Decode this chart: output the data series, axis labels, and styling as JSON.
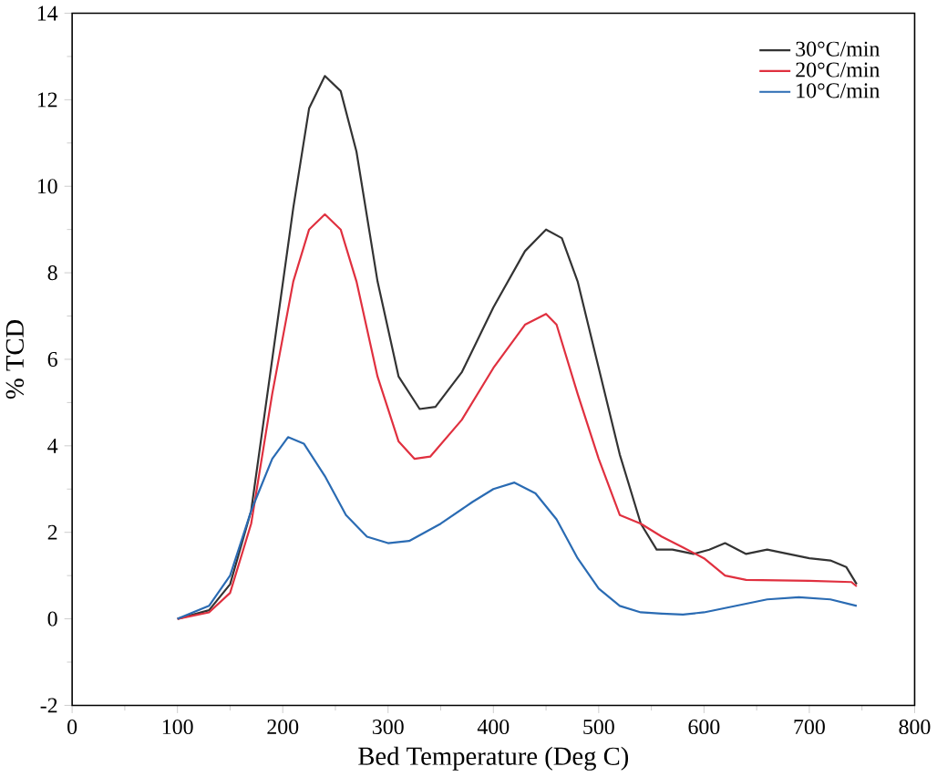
{
  "chart_data": {
    "type": "line",
    "xlabel": "Bed Temperature (Deg C)",
    "ylabel": "% TCD",
    "xlim": [
      0,
      800
    ],
    "xticks": [
      0,
      100,
      200,
      300,
      400,
      500,
      600,
      700,
      800
    ],
    "ylim": [
      -2,
      14
    ],
    "yticks": [
      -2,
      0,
      2,
      4,
      6,
      8,
      10,
      12,
      14
    ],
    "grid": false,
    "legend": "top right",
    "marker": "none",
    "line_style": "solid",
    "series": [
      {
        "name": "30°C/min",
        "color": "#333333",
        "x": [
          100,
          130,
          150,
          170,
          190,
          210,
          225,
          240,
          255,
          270,
          290,
          310,
          330,
          345,
          370,
          400,
          430,
          450,
          465,
          480,
          500,
          520,
          540,
          555,
          570,
          590,
          605,
          620,
          640,
          660,
          680,
          700,
          720,
          735,
          745
        ],
        "values": [
          0,
          0.2,
          0.8,
          2.5,
          6,
          9.5,
          11.8,
          12.55,
          12.2,
          10.8,
          7.8,
          5.6,
          4.85,
          4.9,
          5.7,
          7.2,
          8.5,
          9.0,
          8.8,
          7.8,
          5.8,
          3.8,
          2.2,
          1.6,
          1.6,
          1.5,
          1.6,
          1.75,
          1.5,
          1.6,
          1.5,
          1.4,
          1.35,
          1.2,
          0.8
        ]
      },
      {
        "name": "20°C/min",
        "color": "#e0303f",
        "x": [
          100,
          130,
          150,
          170,
          190,
          210,
          225,
          240,
          255,
          270,
          290,
          310,
          325,
          340,
          370,
          400,
          430,
          450,
          460,
          480,
          500,
          520,
          540,
          560,
          580,
          600,
          620,
          640,
          700,
          740,
          745
        ],
        "values": [
          0,
          0.15,
          0.6,
          2.2,
          5.2,
          7.8,
          9.0,
          9.35,
          9.0,
          7.8,
          5.6,
          4.1,
          3.7,
          3.75,
          4.6,
          5.8,
          6.8,
          7.05,
          6.8,
          5.2,
          3.7,
          2.4,
          2.2,
          1.9,
          1.65,
          1.4,
          1.0,
          0.9,
          0.88,
          0.85,
          0.75
        ]
      },
      {
        "name": "10°C/min",
        "color": "#2a6bb3",
        "x": [
          100,
          130,
          150,
          170,
          190,
          205,
          220,
          240,
          260,
          280,
          300,
          320,
          350,
          380,
          400,
          420,
          440,
          460,
          480,
          500,
          520,
          540,
          560,
          580,
          600,
          630,
          660,
          690,
          720,
          745
        ],
        "values": [
          0,
          0.3,
          1.0,
          2.5,
          3.7,
          4.2,
          4.05,
          3.3,
          2.4,
          1.9,
          1.75,
          1.8,
          2.2,
          2.7,
          3.0,
          3.15,
          2.9,
          2.3,
          1.4,
          0.7,
          0.3,
          0.15,
          0.12,
          0.1,
          0.15,
          0.3,
          0.45,
          0.5,
          0.45,
          0.3
        ]
      }
    ]
  }
}
